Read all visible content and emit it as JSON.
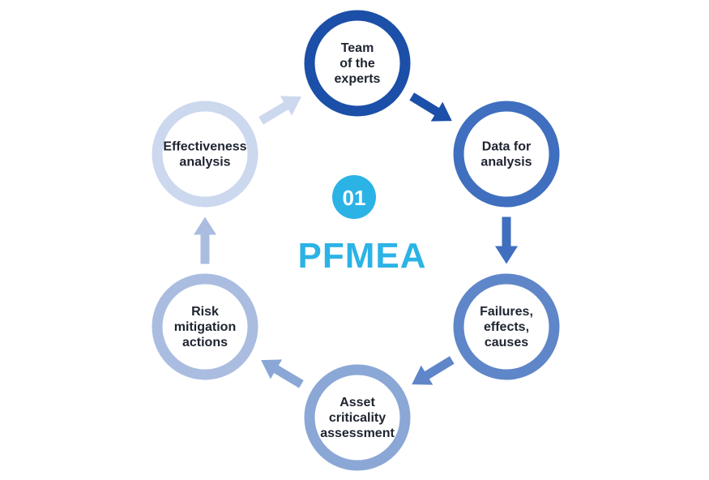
{
  "center": {
    "number": "01",
    "title": "PFMEA",
    "badge_color": "#2bb3e6",
    "title_color": "#2bb3e6"
  },
  "nodes": [
    {
      "id": "team",
      "lines": [
        "Team",
        "of the",
        "experts"
      ],
      "ring_color": "#1b4fa8"
    },
    {
      "id": "data",
      "lines": [
        "Data for",
        "analysis"
      ],
      "ring_color": "#3f6fbe"
    },
    {
      "id": "failures",
      "lines": [
        "Failures,",
        "effects,",
        "causes"
      ],
      "ring_color": "#5f86c8"
    },
    {
      "id": "asset",
      "lines": [
        "Asset",
        "criticality",
        "assessment"
      ],
      "ring_color": "#8ba7d6"
    },
    {
      "id": "risk",
      "lines": [
        "Risk",
        "mitigation",
        "actions"
      ],
      "ring_color": "#aabde0"
    },
    {
      "id": "effectiveness",
      "lines": [
        "Effectiveness",
        "analysis"
      ],
      "ring_color": "#ccd8ee"
    }
  ],
  "arrows": [
    {
      "from": "team",
      "to": "data",
      "color": "#1b4fa8"
    },
    {
      "from": "data",
      "to": "failures",
      "color": "#3f6fbe"
    },
    {
      "from": "failures",
      "to": "asset",
      "color": "#5f86c8"
    },
    {
      "from": "asset",
      "to": "risk",
      "color": "#8ba7d6"
    },
    {
      "from": "risk",
      "to": "effectiveness",
      "color": "#aabde0"
    },
    {
      "from": "effectiveness",
      "to": "team",
      "color": "#ccd8ee"
    }
  ]
}
